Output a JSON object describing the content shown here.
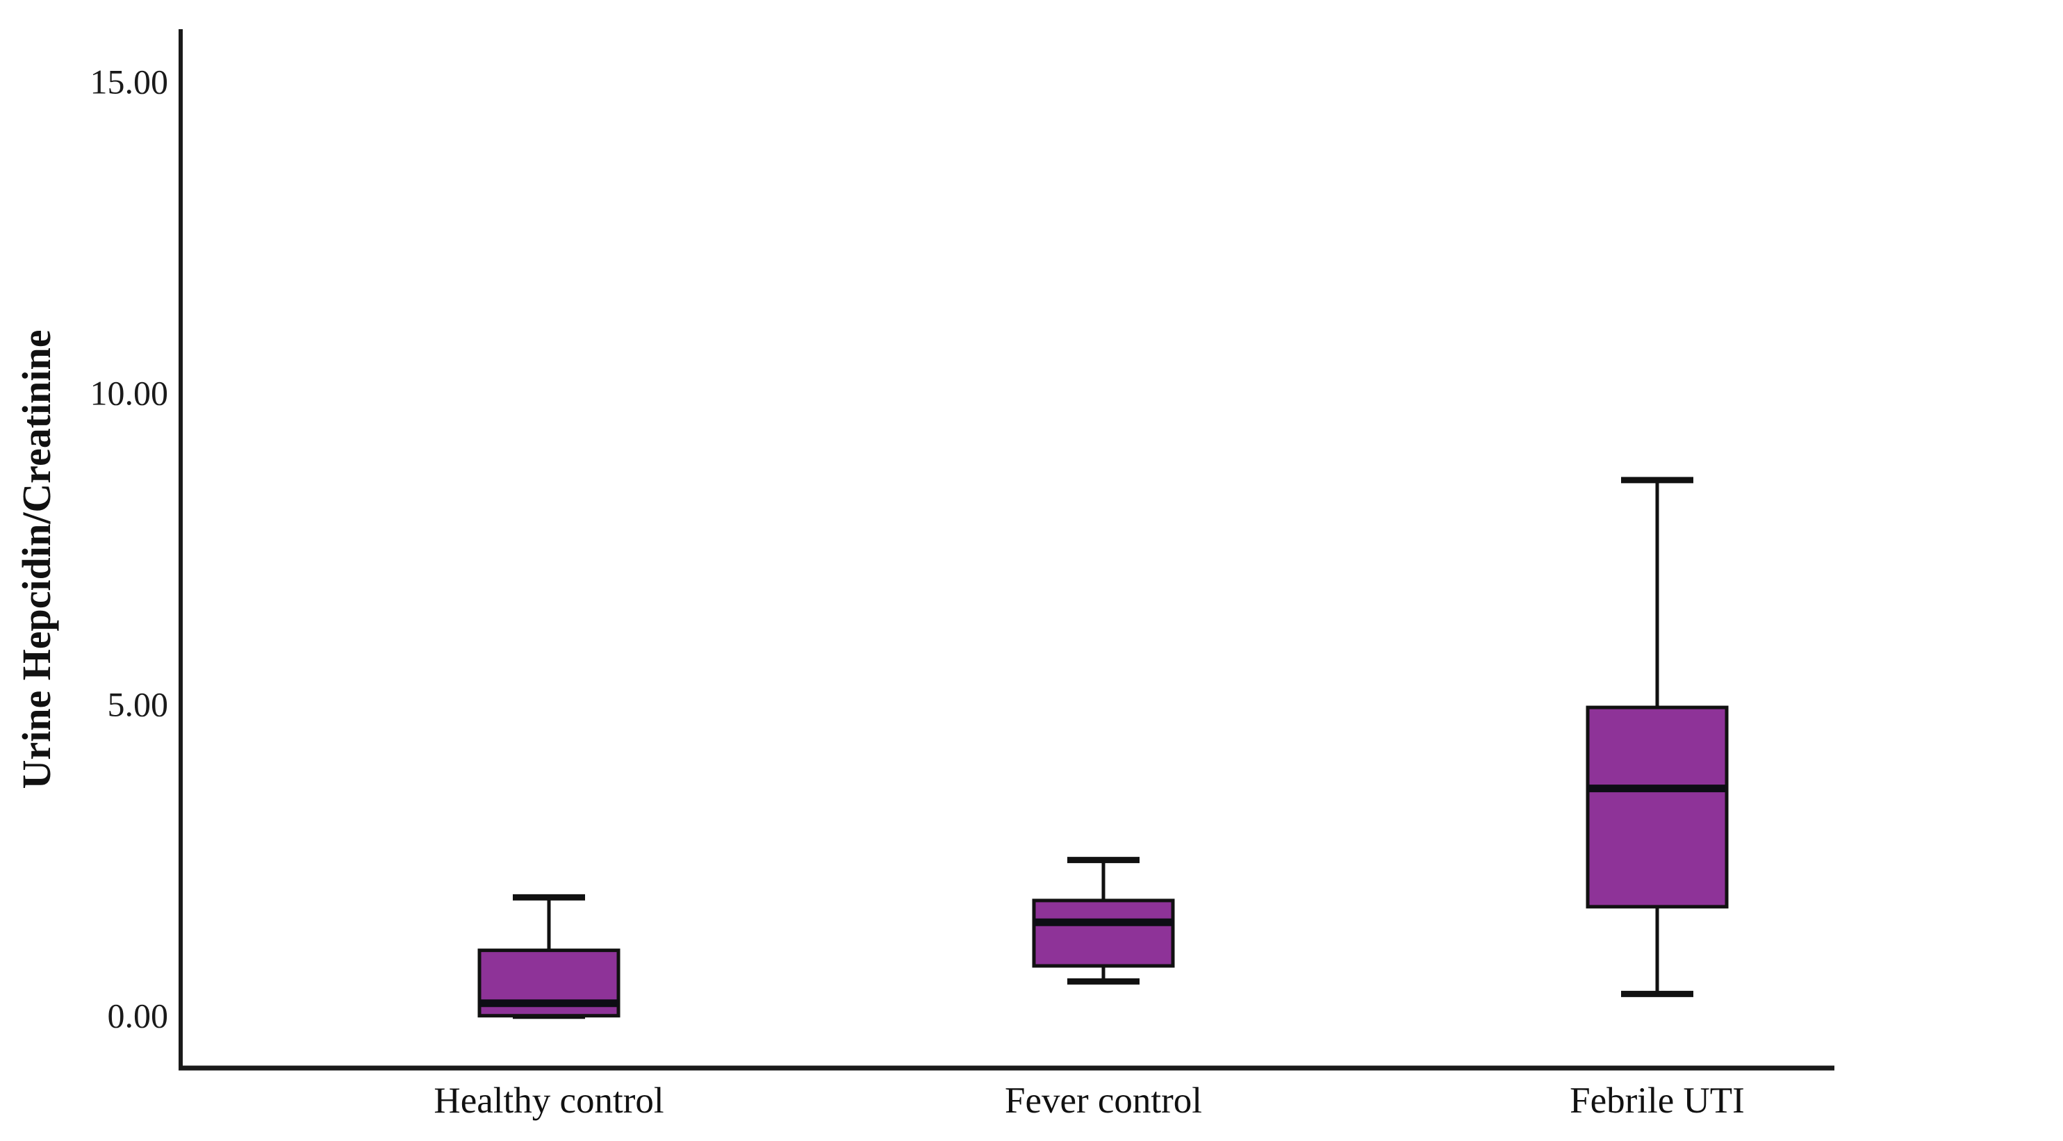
{
  "chart_data": {
    "type": "box",
    "title": "",
    "xlabel": "",
    "ylabel": "Urine Hepcidin/Creatinine",
    "categories": [
      "Healthy control",
      "Fever control",
      "Febrile UTI"
    ],
    "series": [
      {
        "name": "Healthy control",
        "min": 0.0,
        "q1": 0.0,
        "median": 0.2,
        "q3": 1.05,
        "max": 1.9
      },
      {
        "name": "Fever control",
        "min": 0.55,
        "q1": 0.8,
        "median": 1.5,
        "q3": 1.85,
        "max": 2.5
      },
      {
        "name": "Febrile UTI",
        "min": 0.35,
        "q1": 1.75,
        "median": 3.65,
        "q3": 4.95,
        "max": 8.6
      }
    ],
    "yticks": [
      {
        "value": 0,
        "label": "0.00"
      },
      {
        "value": 5,
        "label": "5.00"
      },
      {
        "value": 10,
        "label": "10.00"
      },
      {
        "value": 15,
        "label": "15.00"
      }
    ],
    "ylim": [
      -0.84,
      15.84
    ],
    "grid": false,
    "legend": "none",
    "colors": {
      "box_fill": "#8e3398",
      "box_border": "#111111",
      "median": "#0d0d14",
      "whisker": "#111111",
      "axis": "#1a1a1a",
      "text": "#111111",
      "background": "#ffffff"
    }
  }
}
